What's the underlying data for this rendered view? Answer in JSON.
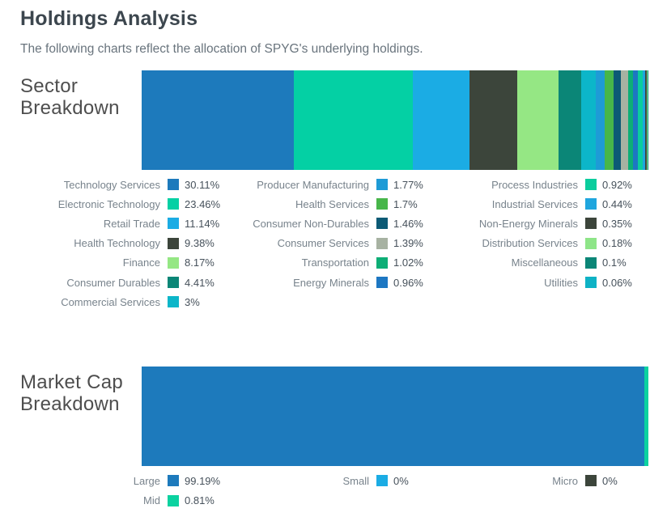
{
  "header": {
    "title": "Holdings Analysis",
    "subtitle": "The following charts reflect the allocation of SPYG's underlying holdings."
  },
  "chart_data": [
    {
      "type": "bar",
      "variant": "horizontal-stacked",
      "title": "Sector Breakdown",
      "title_lines": "Sector\nBreakdown",
      "unit": "%",
      "xlim": [
        0,
        100
      ],
      "legend_position": "bottom-3-columns",
      "legend_column_counts": [
        7,
        6,
        6
      ],
      "series": [
        {
          "name": "Technology Services",
          "value": 30.11,
          "display": "30.11%",
          "color": "#1d7abc"
        },
        {
          "name": "Electronic Technology",
          "value": 23.46,
          "display": "23.46%",
          "color": "#04d0a4"
        },
        {
          "name": "Retail Trade",
          "value": 11.14,
          "display": "11.14%",
          "color": "#1bace4"
        },
        {
          "name": "Health Technology",
          "value": 9.38,
          "display": "9.38%",
          "color": "#3c453b"
        },
        {
          "name": "Finance",
          "value": 8.17,
          "display": "8.17%",
          "color": "#95e784"
        },
        {
          "name": "Consumer Durables",
          "value": 4.41,
          "display": "4.41%",
          "color": "#0b8677"
        },
        {
          "name": "Commercial Services",
          "value": 3,
          "display": "3%",
          "color": "#0cb6c9"
        },
        {
          "name": "Producer Manufacturing",
          "value": 1.77,
          "display": "1.77%",
          "color": "#1e9bd6"
        },
        {
          "name": "Health Services",
          "value": 1.7,
          "display": "1.7%",
          "color": "#47b64a"
        },
        {
          "name": "Consumer Non-Durables",
          "value": 1.46,
          "display": "1.46%",
          "color": "#0c5a75"
        },
        {
          "name": "Consumer Services",
          "value": 1.39,
          "display": "1.39%",
          "color": "#a7b2a2"
        },
        {
          "name": "Transportation",
          "value": 1.02,
          "display": "1.02%",
          "color": "#0dae76"
        },
        {
          "name": "Energy Minerals",
          "value": 0.96,
          "display": "0.96%",
          "color": "#1d77c2"
        },
        {
          "name": "Process Industries",
          "value": 0.92,
          "display": "0.92%",
          "color": "#0bcd9d"
        },
        {
          "name": "Industrial Services",
          "value": 0.44,
          "display": "0.44%",
          "color": "#1fa6de"
        },
        {
          "name": "Non-Energy Minerals",
          "value": 0.35,
          "display": "0.35%",
          "color": "#3c453b"
        },
        {
          "name": "Distribution Services",
          "value": 0.18,
          "display": "0.18%",
          "color": "#8ee588"
        },
        {
          "name": "Miscellaneous",
          "value": 0.1,
          "display": "0.1%",
          "color": "#0b8677"
        },
        {
          "name": "Utilities",
          "value": 0.06,
          "display": "0.06%",
          "color": "#0eb2c5"
        }
      ]
    },
    {
      "type": "bar",
      "variant": "horizontal-stacked",
      "title": "Market Cap Breakdown",
      "title_lines": "Market Cap\nBreakdown",
      "unit": "%",
      "xlim": [
        0,
        100
      ],
      "legend_position": "bottom-3-columns",
      "legend_column_counts": [
        2,
        1,
        1
      ],
      "series": [
        {
          "name": "Large",
          "value": 99.19,
          "display": "99.19%",
          "color": "#1d7abc"
        },
        {
          "name": "Mid",
          "value": 0.81,
          "display": "0.81%",
          "color": "#0bd2a0"
        },
        {
          "name": "Small",
          "value": 0,
          "display": "0%",
          "color": "#1bace4"
        },
        {
          "name": "Micro",
          "value": 0,
          "display": "0%",
          "color": "#3c453b"
        }
      ]
    }
  ]
}
